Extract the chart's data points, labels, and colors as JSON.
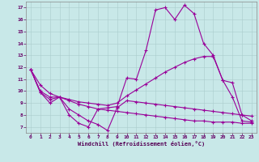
{
  "xlabel": "Windchill (Refroidissement éolien,°C)",
  "bg_color": "#c8e8e8",
  "line_color": "#990099",
  "grid_color": "#aacccc",
  "xlim": [
    -0.5,
    23.5
  ],
  "ylim": [
    6.5,
    17.5
  ],
  "xticks": [
    0,
    1,
    2,
    3,
    4,
    5,
    6,
    7,
    8,
    9,
    10,
    11,
    12,
    13,
    14,
    15,
    16,
    17,
    18,
    19,
    20,
    21,
    22,
    23
  ],
  "yticks": [
    7,
    8,
    9,
    10,
    11,
    12,
    13,
    14,
    15,
    16,
    17
  ],
  "s1": [
    11.8,
    9.9,
    9.0,
    9.5,
    8.0,
    7.3,
    7.0,
    8.5,
    8.6,
    8.7,
    11.1,
    11.0,
    13.4,
    16.8,
    17.0,
    16.0,
    17.2,
    16.5,
    14.0,
    13.0,
    10.9,
    9.5,
    7.5,
    7.4
  ],
  "s2": [
    11.8,
    9.9,
    9.3,
    9.5,
    8.5,
    8.0,
    7.5,
    7.2,
    6.7,
    8.6,
    9.2,
    9.1,
    9.0,
    8.9,
    8.8,
    8.7,
    8.6,
    8.5,
    8.4,
    8.3,
    8.2,
    8.1,
    8.0,
    7.9
  ],
  "s3": [
    11.8,
    10.0,
    9.5,
    9.5,
    9.3,
    9.1,
    9.0,
    8.9,
    8.8,
    9.0,
    9.6,
    10.1,
    10.6,
    11.1,
    11.6,
    12.0,
    12.4,
    12.7,
    12.9,
    12.9,
    10.9,
    10.7,
    8.0,
    7.5
  ],
  "s4": [
    11.8,
    10.5,
    9.8,
    9.5,
    9.2,
    8.9,
    8.7,
    8.5,
    8.4,
    8.3,
    8.2,
    8.1,
    8.0,
    7.9,
    7.8,
    7.7,
    7.6,
    7.5,
    7.5,
    7.4,
    7.4,
    7.4,
    7.3,
    7.3
  ]
}
